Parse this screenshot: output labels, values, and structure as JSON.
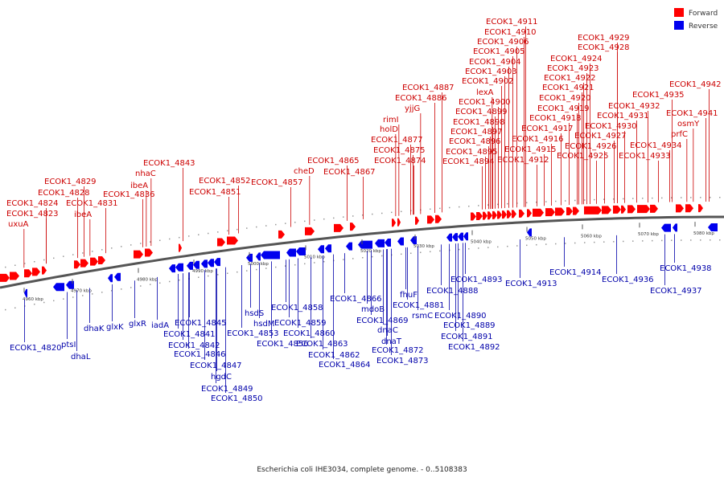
{
  "legend": {
    "forward": {
      "label": "Forward",
      "color": "#ff0000"
    },
    "reverse": {
      "label": "Reverse",
      "color": "#0000ee"
    }
  },
  "caption": "Escherichia coli IHE3034, complete genome. - 0..5108383",
  "axis_ticks": [
    "4960 kbp",
    "4970 kbp",
    "4980 kbp",
    "4990 kbp",
    "5000 kbp",
    "5010 kbp",
    "5020 kbp",
    "5030 kbp",
    "5040 kbp",
    "5050 kbp",
    "5060 kbp",
    "5070 kbp",
    "5080 kbp"
  ],
  "forward_labels": [
    "uxuA",
    "ECOK1_4823",
    "ECOK1_4824",
    "ECOK1_4828",
    "ECOK1_4829",
    "ECOK1_4831",
    "ibeA",
    "ECOK1_4836",
    "ibeA",
    "nhaC",
    "ECOK1_4843",
    "ECOK1_4851",
    "ECOK1_4852",
    "ECOK1_4857",
    "cheD",
    "ECOK1_4865",
    "ECOK1_4867",
    "ECOK1_4874",
    "ECOK1_4875",
    "ECOK1_4877",
    "holD",
    "rimI",
    "yjjG",
    "ECOK1_4886",
    "ECOK1_4887",
    "ECOK1_4894",
    "ECOK1_4895",
    "ECOK1_4896",
    "ECOK1_4897",
    "ECOK1_4898",
    "ECOK1_4899",
    "ECOK1_4900",
    "lexA",
    "ECOK1_4902",
    "ECOK1_4903",
    "ECOK1_4904",
    "ECOK1_4905",
    "ECOK1_4906",
    "ECOK1_4910",
    "ECOK1_4911",
    "ECOK1_4912",
    "ECOK1_4915",
    "ECOK1_4916",
    "ECOK1_4917",
    "ECOK1_4918",
    "ECOK1_4919",
    "ECOK1_4920",
    "ECOK1_4921",
    "ECOK1_4922",
    "ECOK1_4923",
    "ECOK1_4924",
    "ECOK1_4925",
    "ECOK1_4926",
    "ECOK1_4927",
    "ECOK1_4928",
    "ECOK1_4929",
    "ECOK1_4930",
    "ECOK1_4931",
    "ECOK1_4932",
    "ECOK1_4933",
    "ECOK1_4934",
    "ECOK1_4935",
    "prfC",
    "osmY",
    "ECOK1_4941",
    "ECOK1_4942"
  ],
  "reverse_labels": [
    "ECOK1_4820",
    "ptsI",
    "dhaL",
    "dhaK",
    "glxK",
    "glxR",
    "iadA",
    "ECOK1_4845",
    "ECOK1_4841",
    "ECOK1_4842",
    "ECOK1_4846",
    "ECOK1_4847",
    "hgdC",
    "ECOK1_4849",
    "ECOK1_4850",
    "hsdS",
    "hsdM",
    "ECOK1_4853",
    "ECOK1_4856",
    "ECOK1_4858",
    "ECOK1_4859",
    "ECOK1_4860",
    "ECOK1_4863",
    "ECOK1_4862",
    "ECOK1_4864",
    "ECOK1_4866",
    "mdoB",
    "ECOK1_4869",
    "dnaC",
    "dnaT",
    "ECOK1_4872",
    "ECOK1_4873",
    "fhuF",
    "ECOK1_4881",
    "rsmC",
    "ECOK1_4888",
    "ECOK1_4893",
    "ECOK1_4890",
    "ECOK1_4889",
    "ECOK1_4891",
    "ECOK1_4892",
    "ECOK1_4913",
    "ECOK1_4914",
    "ECOK1_4936",
    "ECOK1_4937",
    "ECOK1_4938"
  ]
}
